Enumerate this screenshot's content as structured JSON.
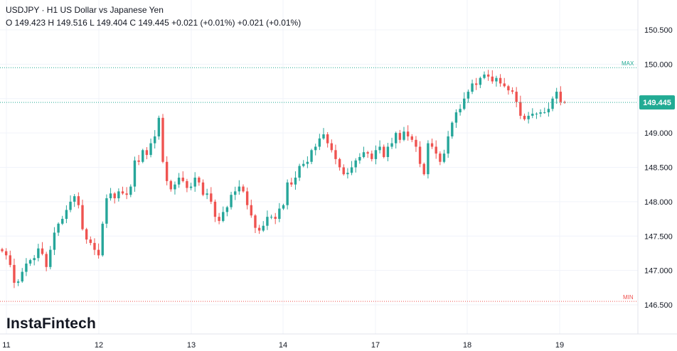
{
  "header": {
    "symbol_line": "USDJPY · H1 US Dollar vs Japanese Yen",
    "ohlc_line": "O 149.423 H 149.516 L 149.404 C 149.445 +0.021 (+0.01%) +0.021 (+0.01%)"
  },
  "branding": {
    "logo_text": "InstaFintech"
  },
  "chart_data": {
    "type": "candlestick",
    "title": "USDJPY · H1 US Dollar vs Japanese Yen",
    "timeframe": "H1",
    "y_range": [
      146.5,
      150.5
    ],
    "y_ticks": [
      "150.500",
      "150.000",
      "149.500",
      "149.000",
      "148.500",
      "148.000",
      "147.500",
      "147.000",
      "146.500"
    ],
    "x_tick_labels": [
      "11",
      "12",
      "13",
      "14",
      "17",
      "18",
      "19"
    ],
    "last_price": {
      "label": "149.445",
      "value": 149.445
    },
    "max_line": {
      "label": "MAX",
      "value": 149.95
    },
    "min_line": {
      "label": "MIN",
      "value": 146.55
    },
    "colors": {
      "up": "#26a69a",
      "down": "#ef5350",
      "last_price": "#22ab94",
      "max": "#22ab94",
      "min": "#ef5350",
      "grid": "#f0f3fa"
    },
    "closes": [
      147.28,
      147.22,
      147.08,
      146.82,
      146.84,
      146.98,
      147.1,
      147.15,
      147.18,
      147.32,
      147.24,
      147.05,
      147.3,
      147.55,
      147.68,
      147.75,
      147.88,
      148.0,
      148.08,
      147.95,
      147.6,
      147.45,
      147.4,
      147.3,
      147.22,
      147.68,
      148.05,
      148.12,
      148.05,
      148.15,
      148.12,
      148.1,
      148.22,
      148.6,
      148.58,
      148.75,
      148.68,
      148.85,
      148.95,
      149.22,
      148.58,
      148.3,
      148.18,
      148.25,
      148.35,
      148.3,
      148.2,
      148.22,
      148.35,
      148.28,
      148.1,
      148.12,
      148.0,
      147.78,
      147.72,
      147.85,
      147.92,
      148.1,
      148.15,
      148.22,
      148.15,
      147.95,
      147.8,
      147.62,
      147.58,
      147.65,
      147.78,
      147.78,
      147.75,
      147.9,
      147.95,
      148.28,
      148.25,
      148.35,
      148.52,
      148.55,
      148.58,
      148.75,
      148.8,
      148.92,
      148.98,
      148.85,
      148.75,
      148.62,
      148.5,
      148.4,
      148.42,
      148.5,
      148.6,
      148.65,
      148.72,
      148.7,
      148.62,
      148.75,
      148.8,
      148.65,
      148.8,
      148.85,
      149.0,
      148.9,
      149.02,
      148.95,
      148.9,
      148.8,
      148.55,
      148.4,
      148.85,
      148.8,
      148.7,
      148.58,
      148.7,
      148.95,
      149.15,
      149.3,
      149.35,
      149.5,
      149.6,
      149.72,
      149.7,
      149.8,
      149.85,
      149.82,
      149.75,
      149.8,
      149.72,
      149.68,
      149.62,
      149.6,
      149.45,
      149.25,
      149.2,
      149.25,
      149.28,
      149.28,
      149.3,
      149.3,
      149.35,
      149.5,
      149.6,
      149.45,
      149.445
    ],
    "series": [
      {
        "name": "USDJPY"
      }
    ]
  }
}
